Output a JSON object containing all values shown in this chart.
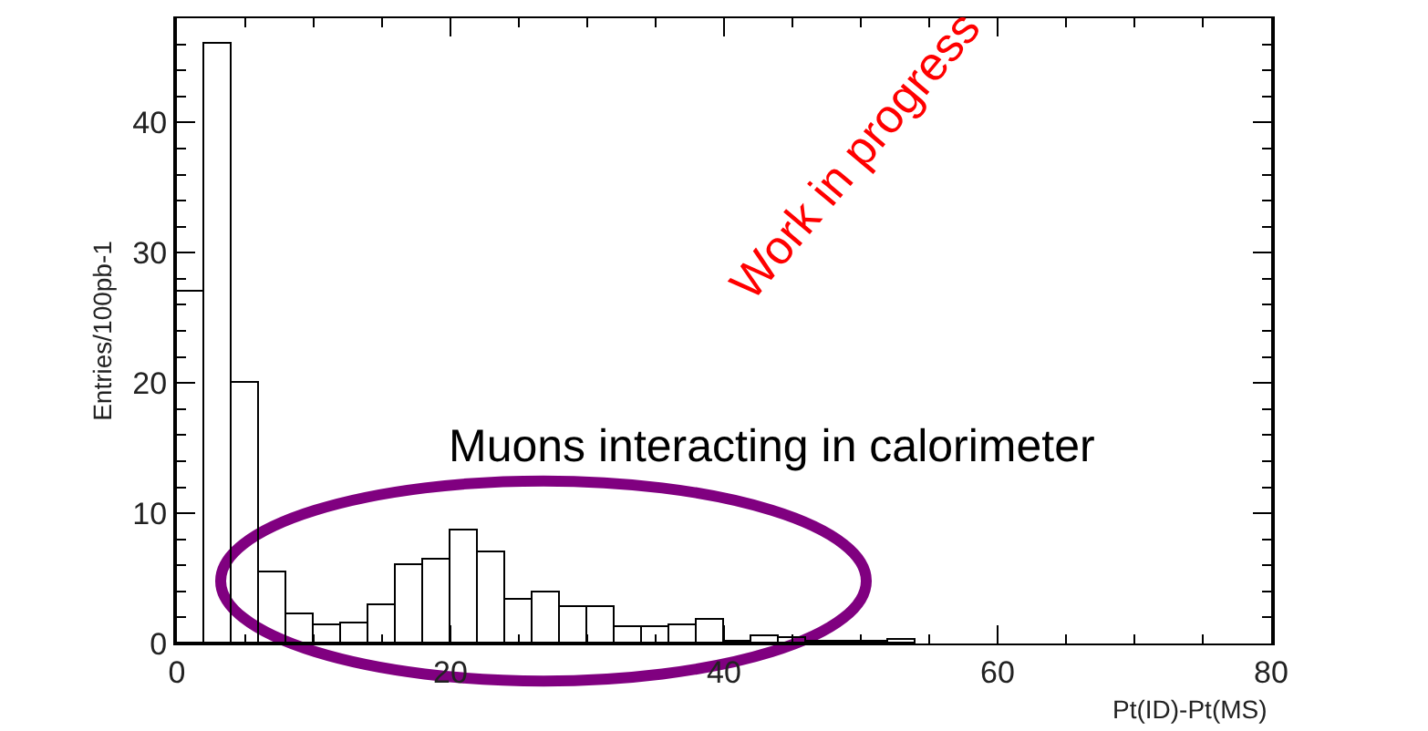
{
  "chart_data": {
    "type": "histogram",
    "xlabel": "Pt(ID)-Pt(MS)",
    "ylabel": "Entries/100pb-1",
    "bins": [
      0,
      2,
      4,
      6,
      8,
      10,
      12,
      14,
      16,
      18,
      20,
      22,
      24,
      26,
      28,
      30,
      32,
      34,
      36,
      38,
      40,
      42,
      44,
      46,
      48,
      50,
      52,
      54
    ],
    "values": [
      27,
      46,
      20,
      5.4,
      2.3,
      1.4,
      1.5,
      3,
      6,
      6.5,
      8.7,
      7,
      3.3,
      3.9,
      2.8,
      2.8,
      1.3,
      1.3,
      1.4,
      1.8,
      0.2,
      0.6,
      0.4,
      0.2,
      0.2,
      0.1,
      0.3
    ],
    "color": "#000000",
    "xlim": [
      0,
      80
    ],
    "xticks": [
      0,
      20,
      40,
      60,
      80
    ],
    "ylim": [
      0,
      48
    ],
    "yticks": [
      0,
      10,
      20,
      30,
      40
    ],
    "grid": false,
    "annotations": [
      "Muons interacting in calorimeter",
      "Work in progress"
    ]
  }
}
